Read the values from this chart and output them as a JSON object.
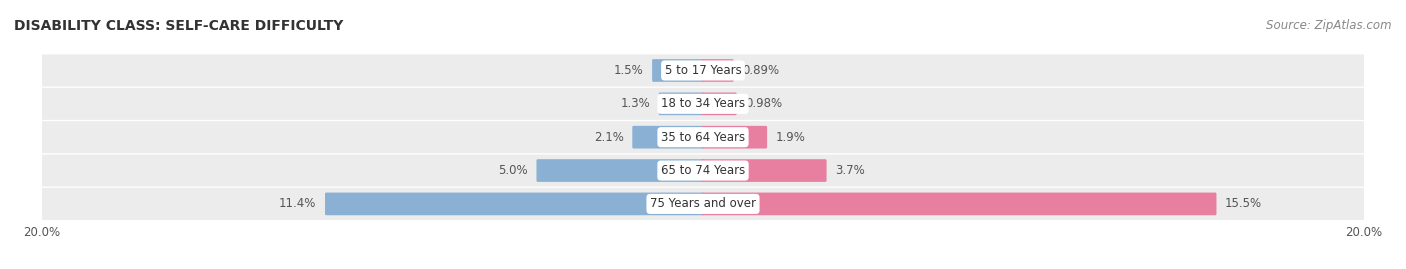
{
  "title": "DISABILITY CLASS: SELF-CARE DIFFICULTY",
  "source": "Source: ZipAtlas.com",
  "categories": [
    "5 to 17 Years",
    "18 to 34 Years",
    "35 to 64 Years",
    "65 to 74 Years",
    "75 Years and over"
  ],
  "male_values": [
    1.5,
    1.3,
    2.1,
    5.0,
    11.4
  ],
  "female_values": [
    0.89,
    0.98,
    1.9,
    3.7,
    15.5
  ],
  "male_labels": [
    "1.5%",
    "1.3%",
    "2.1%",
    "5.0%",
    "11.4%"
  ],
  "female_labels": [
    "0.89%",
    "0.98%",
    "1.9%",
    "3.7%",
    "15.5%"
  ],
  "max_val": 20.0,
  "male_color": "#8ab0d4",
  "female_color": "#e87fa0",
  "row_bg_color": "#ececec",
  "row_bg_color_alt": "#e0e0e0",
  "label_color": "#555555",
  "title_color": "#333333",
  "title_fontsize": 10,
  "source_fontsize": 8.5,
  "label_fontsize": 8.5,
  "category_fontsize": 8.5,
  "legend_fontsize": 9,
  "axis_label_fontsize": 8.5
}
